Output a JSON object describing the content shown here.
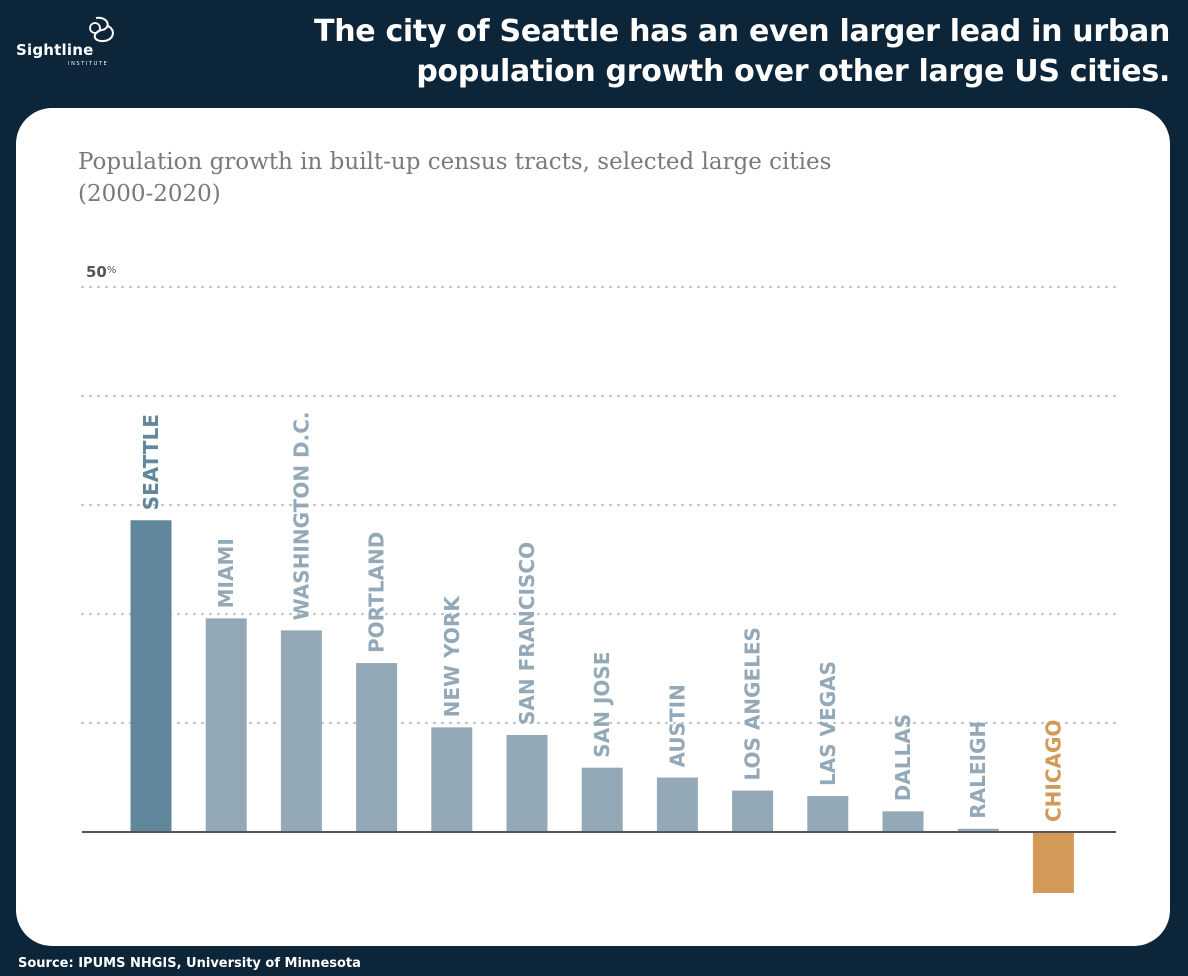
{
  "header": {
    "logo_name": "Sightline",
    "logo_sub": "INSTITUTE",
    "headline_line1": "The city of Seattle has an even larger lead in urban",
    "headline_line2": "population growth over other large US cities."
  },
  "source": "Source: IPUMS NHGIS, University of Minnesota",
  "colors": {
    "background": "#0d2538",
    "seattle": "#61879d",
    "other": "#94a9b8",
    "chicago": "#d29a56",
    "grid": "#c4c4c4",
    "axis": "#555555"
  },
  "chart_data": {
    "type": "bar",
    "title": "Population growth in built-up census tracts, selected large cities",
    "title_line2": "(2000-2020)",
    "ytick_label_value": "50",
    "ytick_label_unit": "%",
    "ylim": [
      -10,
      50
    ],
    "gridlines": [
      10,
      20,
      30,
      40,
      50
    ],
    "grid": true,
    "categories": [
      "SEATTLE",
      "MIAMI",
      "WASHINGTON D.C.",
      "PORTLAND",
      "NEW YORK",
      "SAN FRANCISCO",
      "SAN JOSE",
      "AUSTIN",
      "LOS ANGELES",
      "LAS VEGAS",
      "DALLAS",
      "RALEIGH",
      "CHICAGO"
    ],
    "values": [
      28.6,
      19.6,
      18.5,
      15.5,
      9.6,
      8.9,
      5.9,
      5.0,
      3.8,
      3.3,
      1.9,
      0.3,
      -5.6
    ]
  }
}
